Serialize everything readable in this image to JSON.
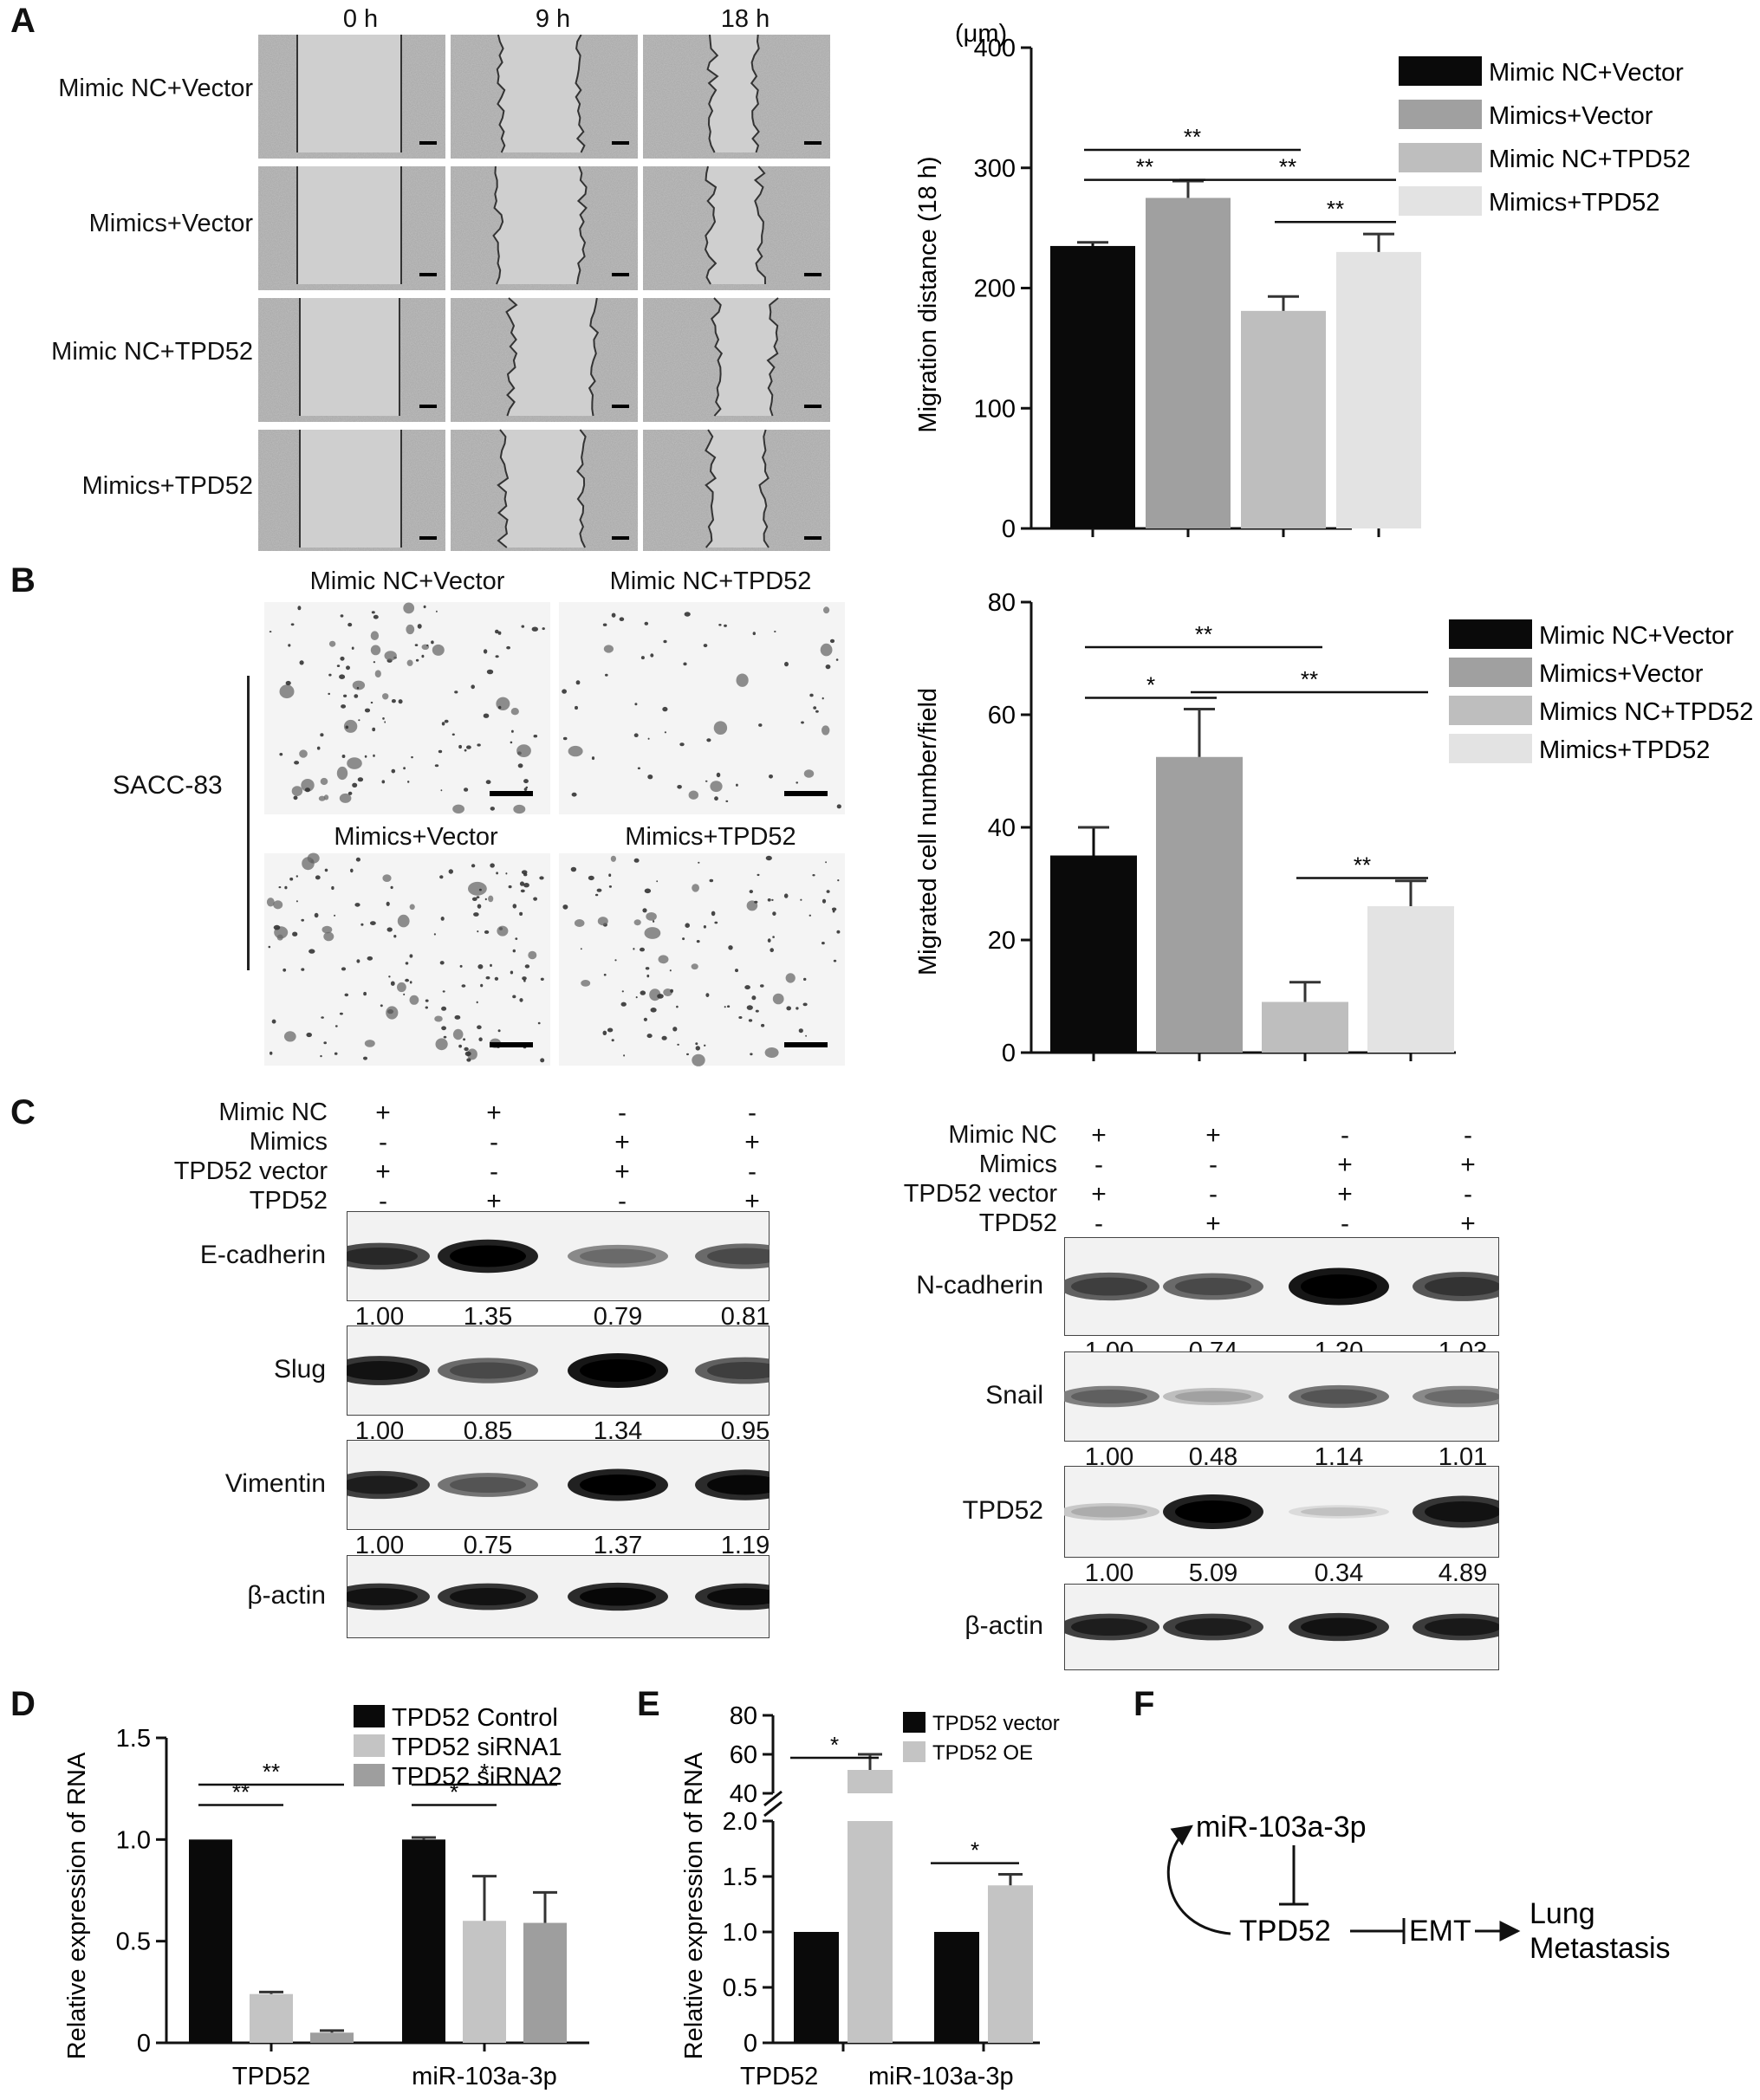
{
  "panels": {
    "A": "A",
    "B": "B",
    "C": "C",
    "D": "D",
    "E": "E",
    "F": "F"
  },
  "panelA": {
    "time_labels": [
      "0 h",
      "9 h",
      "18 h"
    ],
    "row_labels": [
      "Mimic NC+Vector",
      "Mimics+Vector",
      "Mimic NC+TPD52",
      "Mimics+TPD52"
    ]
  },
  "panelB": {
    "cell_line": "SACC-83",
    "image_labels": [
      "Mimic NC+Vector",
      "Mimic NC+TPD52",
      "Mimics+Vector",
      "Mimics+TPD52"
    ]
  },
  "panelC": {
    "condition_labels": [
      "Mimic NC",
      "Mimics",
      "TPD52 vector",
      "TPD52"
    ],
    "signs": [
      [
        "+",
        "+",
        "-",
        "-"
      ],
      [
        "-",
        "-",
        "+",
        "+"
      ],
      [
        "+",
        "-",
        "+",
        "-"
      ],
      [
        "-",
        "+",
        "-",
        "+"
      ]
    ],
    "left_blots": [
      {
        "name": "E-cadherin",
        "values": [
          "1.00",
          "1.35",
          "0.79",
          "0.81"
        ]
      },
      {
        "name": "Slug",
        "values": [
          "1.00",
          "0.85",
          "1.34",
          "0.95"
        ]
      },
      {
        "name": "Vimentin",
        "values": [
          "1.00",
          "0.75",
          "1.37",
          "1.19"
        ]
      },
      {
        "name": "β-actin",
        "values": []
      }
    ],
    "right_blots": [
      {
        "name": "N-cadherin",
        "values": [
          "1.00",
          "0.74",
          "1.30",
          "1.03"
        ]
      },
      {
        "name": "Snail",
        "values": [
          "1.00",
          "0.48",
          "1.14",
          "1.01"
        ]
      },
      {
        "name": "TPD52",
        "values": [
          "1.00",
          "5.09",
          "0.34",
          "4.89"
        ]
      },
      {
        "name": "β-actin",
        "values": []
      }
    ]
  },
  "panelF": {
    "nodes": [
      "miR-103a-3p",
      "TPD52",
      "EMT",
      "Lung",
      "Metastasis"
    ]
  },
  "chart_data": [
    {
      "id": "A-bar",
      "type": "bar",
      "ylabel": "Migration distance (18 h)",
      "unit": "(μm)",
      "ylim": [
        0,
        400
      ],
      "yticks": [
        "0",
        "100",
        "200",
        "300",
        "400"
      ],
      "categories": [
        "Mimic NC+Vector",
        "Mimics+Vector",
        "Mimic NC+TPD52",
        "Mimics+TPD52"
      ],
      "values": [
        235,
        275,
        181,
        230
      ],
      "errors": [
        3,
        14,
        12,
        15
      ],
      "colors": [
        "#0a0a0a",
        "#a0a0a0",
        "#bebebe",
        "#e3e3e3"
      ],
      "legend": [
        "Mimic NC+Vector",
        "Mimics+Vector",
        "Mimic NC+TPD52",
        "Mimics+TPD52"
      ],
      "legend_position": "top-right",
      "significance": [
        {
          "from": 0,
          "to": 2,
          "y": 315,
          "label": "**"
        },
        {
          "from": 0,
          "to": 1,
          "y": 290,
          "label": "**"
        },
        {
          "from": 1,
          "to": 3,
          "y": 290,
          "label": "**"
        },
        {
          "from": 2,
          "to": 3,
          "y": 255,
          "label": "**"
        }
      ]
    },
    {
      "id": "B-bar",
      "type": "bar",
      "ylabel": "Migrated cell number/field",
      "ylim": [
        0,
        80
      ],
      "yticks": [
        "0",
        "20",
        "40",
        "60",
        "80"
      ],
      "categories": [
        "Mimic NC+Vector",
        "Mimics+Vector",
        "Mimics NC+TPD52",
        "Mimics+TPD52"
      ],
      "values": [
        35,
        52.5,
        9,
        26
      ],
      "errors": [
        5,
        8.5,
        3.5,
        4.5
      ],
      "colors": [
        "#0a0a0a",
        "#a0a0a0",
        "#bebebe",
        "#e3e3e3"
      ],
      "legend": [
        "Mimic NC+Vector",
        "Mimics+Vector",
        "Mimics NC+TPD52",
        "Mimics+TPD52"
      ],
      "legend_position": "top-right",
      "significance": [
        {
          "from": 0,
          "to": 2,
          "y": 72,
          "label": "**"
        },
        {
          "from": 0,
          "to": 1,
          "y": 63,
          "label": "*"
        },
        {
          "from": 1,
          "to": 3,
          "y": 64,
          "label": "**"
        },
        {
          "from": 2,
          "to": 3,
          "y": 31,
          "label": "**"
        }
      ]
    },
    {
      "id": "D-bar",
      "type": "bar",
      "ylabel": "Relative expression of RNA",
      "ylim": [
        0,
        1.5
      ],
      "yticks": [
        "0",
        "0.5",
        "1.0",
        "1.5"
      ],
      "categories": [
        "TPD52",
        "miR-103a-3p"
      ],
      "series": [
        {
          "name": "TPD52 Control",
          "values": [
            1.0,
            1.0
          ],
          "errors": [
            0,
            0.01
          ],
          "color": "#0a0a0a"
        },
        {
          "name": "TPD52 siRNA1",
          "values": [
            0.24,
            0.6
          ],
          "errors": [
            0.01,
            0.22
          ],
          "color": "#c4c4c4"
        },
        {
          "name": "TPD52 siRNA2",
          "values": [
            0.05,
            0.59
          ],
          "errors": [
            0.01,
            0.15
          ],
          "color": "#9e9e9e"
        }
      ],
      "legend_position": "top-right",
      "significance": [
        {
          "group": 0,
          "from": 0,
          "to": 1,
          "y": 1.17,
          "label": "**"
        },
        {
          "group": 0,
          "from": 0,
          "to": 2,
          "y": 1.27,
          "label": "**"
        },
        {
          "group": 1,
          "from": 0,
          "to": 1,
          "y": 1.17,
          "label": "*"
        },
        {
          "group": 1,
          "from": 0,
          "to": 2,
          "y": 1.27,
          "label": "*"
        }
      ]
    },
    {
      "id": "E-bar",
      "type": "bar",
      "broken_axis": true,
      "ylabel": "Relative expression of RNA",
      "yticks_lower": [
        "0",
        "0.5",
        "1.0",
        "1.5",
        "2.0"
      ],
      "yticks_upper": [
        "40",
        "60",
        "80"
      ],
      "categories": [
        "TPD52",
        "miR-103a-3p"
      ],
      "series": [
        {
          "name": "TPD52 vector",
          "values": [
            1.0,
            1.0
          ],
          "errors": [
            0,
            0
          ],
          "color": "#0a0a0a"
        },
        {
          "name": "TPD52 OE",
          "values": [
            52,
            1.42
          ],
          "errors": [
            8,
            0.1
          ],
          "color": "#c4c4c4"
        }
      ],
      "legend_position": "top-right",
      "significance": [
        {
          "group": 0,
          "label": "*"
        },
        {
          "group": 1,
          "label": "*"
        }
      ]
    }
  ]
}
